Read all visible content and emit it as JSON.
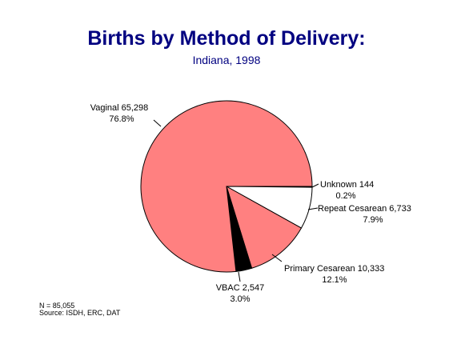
{
  "chart_data": {
    "type": "pie",
    "title": "Births by Method of Delivery:",
    "subtitle": "Indiana, 1998",
    "slices": [
      {
        "label": "Unknown",
        "value_text": "144",
        "percent_text": "0.2%",
        "value": 144,
        "color": "#000000"
      },
      {
        "label": "Repeat Cesarean",
        "value_text": "6,733",
        "percent_text": "7.9%",
        "value": 6733,
        "color": "#ffffff"
      },
      {
        "label": "Primary Cesarean",
        "value_text": "10,333",
        "percent_text": "12.1%",
        "value": 10333,
        "color": "#ff8080"
      },
      {
        "label": "VBAC",
        "value_text": "2,547",
        "percent_text": "3.0%",
        "value": 2547,
        "color": "#000000"
      },
      {
        "label": "Vaginal",
        "value_text": "65,298",
        "percent_text": "76.8%",
        "value": 65298,
        "color": "#ff8080"
      }
    ],
    "notes": [
      "N = 85,055",
      "Source:  ISDH, ERC, DAT"
    ]
  }
}
